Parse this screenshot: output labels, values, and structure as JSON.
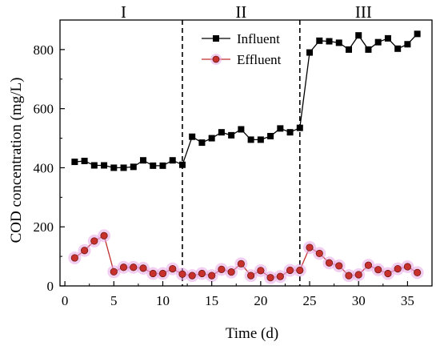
{
  "chart_data": {
    "type": "line",
    "xlabel": "Time (d)",
    "ylabel": "COD concentration (mg/L)",
    "xlim": [
      -0.5,
      37.5
    ],
    "ylim": [
      0,
      900
    ],
    "xticks": [
      0,
      5,
      10,
      15,
      20,
      25,
      30,
      35
    ],
    "yticks": [
      0,
      200,
      400,
      600,
      800
    ],
    "phases": [
      {
        "label": "I",
        "x_center": 6
      },
      {
        "label": "II",
        "x_center": 18
      },
      {
        "label": "III",
        "x_center": 30.5
      }
    ],
    "dividers": [
      12,
      24
    ],
    "legend_position": "top-center",
    "series": [
      {
        "name": "Influent",
        "marker": "square",
        "color": "#000000",
        "x": [
          1,
          2,
          3,
          4,
          5,
          6,
          7,
          8,
          9,
          10,
          11,
          12,
          13,
          14,
          15,
          16,
          17,
          18,
          19,
          20,
          21,
          22,
          23,
          24,
          25,
          26,
          27,
          28,
          29,
          30,
          31,
          32,
          33,
          34,
          35,
          36
        ],
        "y": [
          420,
          423,
          408,
          408,
          400,
          400,
          403,
          425,
          407,
          407,
          425,
          410,
          505,
          485,
          500,
          520,
          510,
          530,
          495,
          495,
          507,
          533,
          520,
          535,
          790,
          830,
          828,
          823,
          800,
          848,
          800,
          825,
          838,
          803,
          818,
          853
        ]
      },
      {
        "name": "Effluent",
        "marker": "circle",
        "color": "#c0302e",
        "x": [
          1,
          2,
          3,
          4,
          5,
          6,
          7,
          8,
          9,
          10,
          11,
          12,
          13,
          14,
          15,
          16,
          17,
          18,
          19,
          20,
          21,
          22,
          23,
          24,
          25,
          26,
          27,
          28,
          29,
          30,
          31,
          32,
          33,
          34,
          35,
          36
        ],
        "y": [
          95,
          120,
          152,
          170,
          48,
          63,
          63,
          60,
          42,
          42,
          58,
          40,
          35,
          42,
          35,
          56,
          47,
          75,
          35,
          52,
          28,
          32,
          53,
          53,
          130,
          110,
          78,
          68,
          35,
          38,
          70,
          55,
          42,
          58,
          65,
          45
        ]
      }
    ]
  }
}
